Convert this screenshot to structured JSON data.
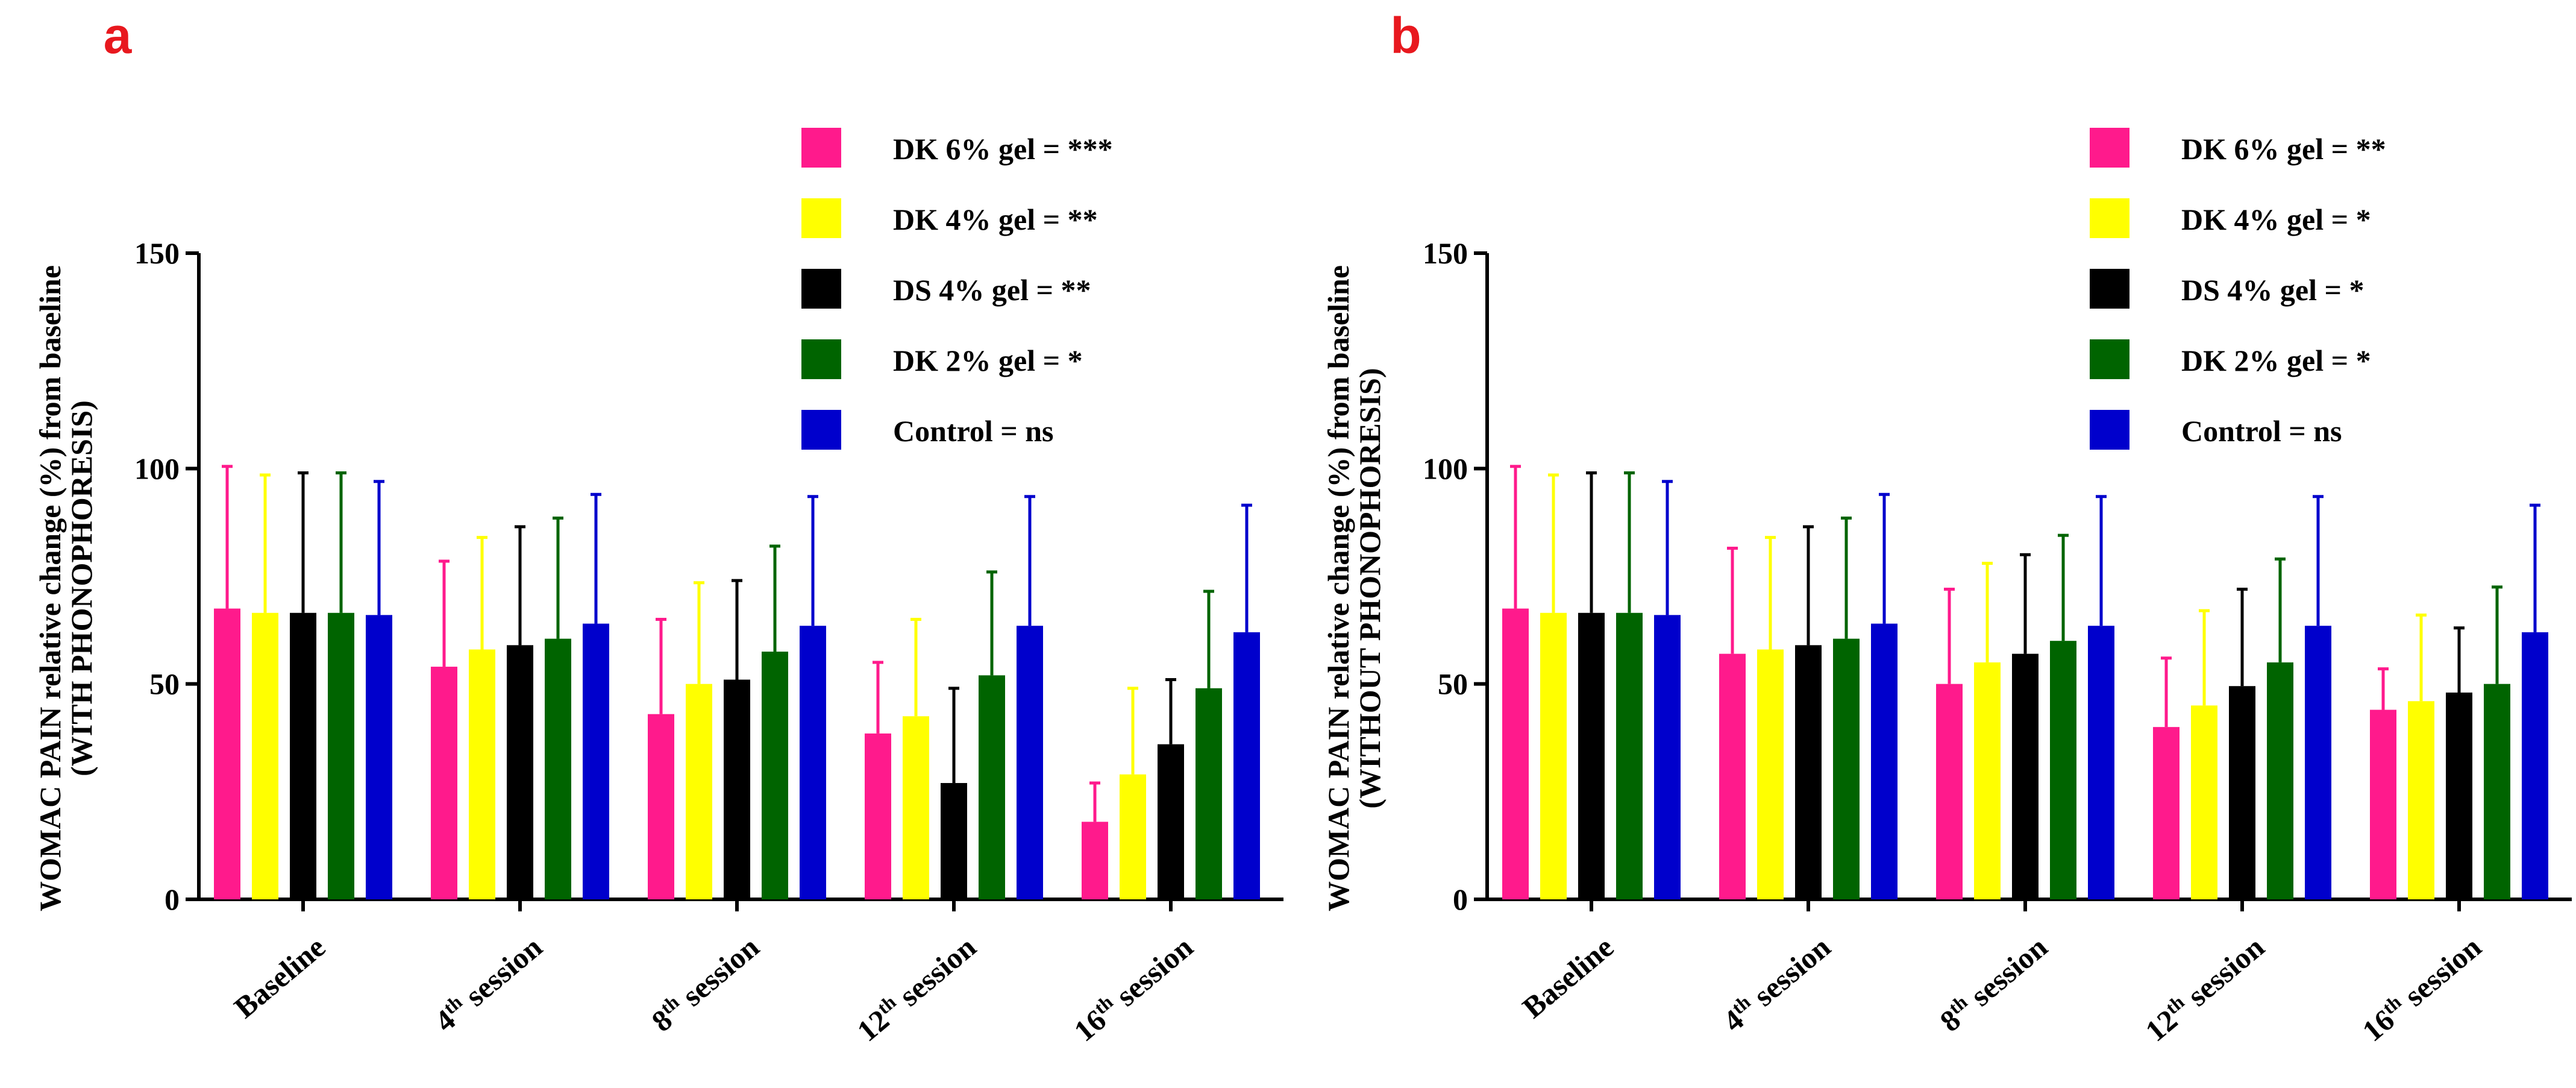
{
  "chart_data": [
    {
      "panel": "a",
      "type": "bar",
      "title": "",
      "ylabel_line1": "WOMAC PAIN relative change (%) from baseline",
      "ylabel_line2": "(WITH PHONOPHORESIS)",
      "xlabel": "",
      "ylim": [
        0,
        150
      ],
      "yticks": [
        "0",
        "50",
        "100",
        "150"
      ],
      "categories": [
        {
          "base": "Baseline",
          "sup": "",
          "rest": ""
        },
        {
          "base": "4",
          "sup": "th",
          "rest": " session"
        },
        {
          "base": "8",
          "sup": "th",
          "rest": " session"
        },
        {
          "base": "12",
          "sup": "th",
          "rest": " session"
        },
        {
          "base": "16",
          "sup": "th",
          "rest": " session"
        }
      ],
      "series": [
        {
          "name": "DK 6% gel = ***",
          "color": "#ff1a8c",
          "values": [
            67.5,
            54,
            43,
            38.5,
            18
          ],
          "errors": [
            33,
            24.5,
            22,
            16.5,
            9
          ]
        },
        {
          "name": "DK 4% gel = **",
          "color": "#ffff00",
          "values": [
            66.5,
            58,
            50,
            42.5,
            29
          ],
          "errors": [
            32,
            26,
            23.5,
            22.5,
            20
          ]
        },
        {
          "name": "DS 4% gel = **",
          "color": "#000000",
          "values": [
            66.5,
            59,
            51,
            27,
            36
          ],
          "errors": [
            32.5,
            27.5,
            23,
            22,
            15
          ]
        },
        {
          "name": "DK 2% gel = *",
          "color": "#006400",
          "values": [
            66.5,
            60.5,
            57.5,
            52,
            49
          ],
          "errors": [
            32.5,
            28,
            24.5,
            24,
            22.5
          ]
        },
        {
          "name": "Control = ns",
          "color": "#0000cc",
          "values": [
            66,
            64,
            63.5,
            63.5,
            62
          ],
          "errors": [
            31,
            30,
            30,
            30,
            29.5
          ]
        }
      ]
    },
    {
      "panel": "b",
      "type": "bar",
      "title": "",
      "ylabel_line1": "WOMAC PAIN relative change (%) from baseline",
      "ylabel_line2": "(WITHOUT PHONOPHORESIS)",
      "xlabel": "",
      "ylim": [
        0,
        150
      ],
      "yticks": [
        "0",
        "50",
        "100",
        "150"
      ],
      "categories": [
        {
          "base": "Baseline",
          "sup": "",
          "rest": ""
        },
        {
          "base": "4",
          "sup": "th",
          "rest": " session"
        },
        {
          "base": "8",
          "sup": "th",
          "rest": " session"
        },
        {
          "base": "12",
          "sup": "th",
          "rest": " session"
        },
        {
          "base": "16",
          "sup": "th",
          "rest": " session"
        }
      ],
      "series": [
        {
          "name": "DK 6% gel = **",
          "color": "#ff1a8c",
          "values": [
            67.5,
            57,
            50,
            40,
            44
          ],
          "errors": [
            33,
            24.5,
            22,
            16,
            9.5
          ]
        },
        {
          "name": "DK 4% gel = *",
          "color": "#ffff00",
          "values": [
            66.5,
            58,
            55,
            45,
            46
          ],
          "errors": [
            32,
            26,
            23,
            22,
            20
          ]
        },
        {
          "name": "DS 4% gel = *",
          "color": "#000000",
          "values": [
            66.5,
            59,
            57,
            49.5,
            48
          ],
          "errors": [
            32.5,
            27.5,
            23,
            22.5,
            15
          ]
        },
        {
          "name": "DK 2% gel = *",
          "color": "#006400",
          "values": [
            66.5,
            60.5,
            60,
            55,
            50
          ],
          "errors": [
            32.5,
            28,
            24.5,
            24,
            22.5
          ]
        },
        {
          "name": "Control = ns",
          "color": "#0000cc",
          "values": [
            66,
            64,
            63.5,
            63.5,
            62
          ],
          "errors": [
            31,
            30,
            30,
            30,
            29.5
          ]
        }
      ]
    }
  ]
}
